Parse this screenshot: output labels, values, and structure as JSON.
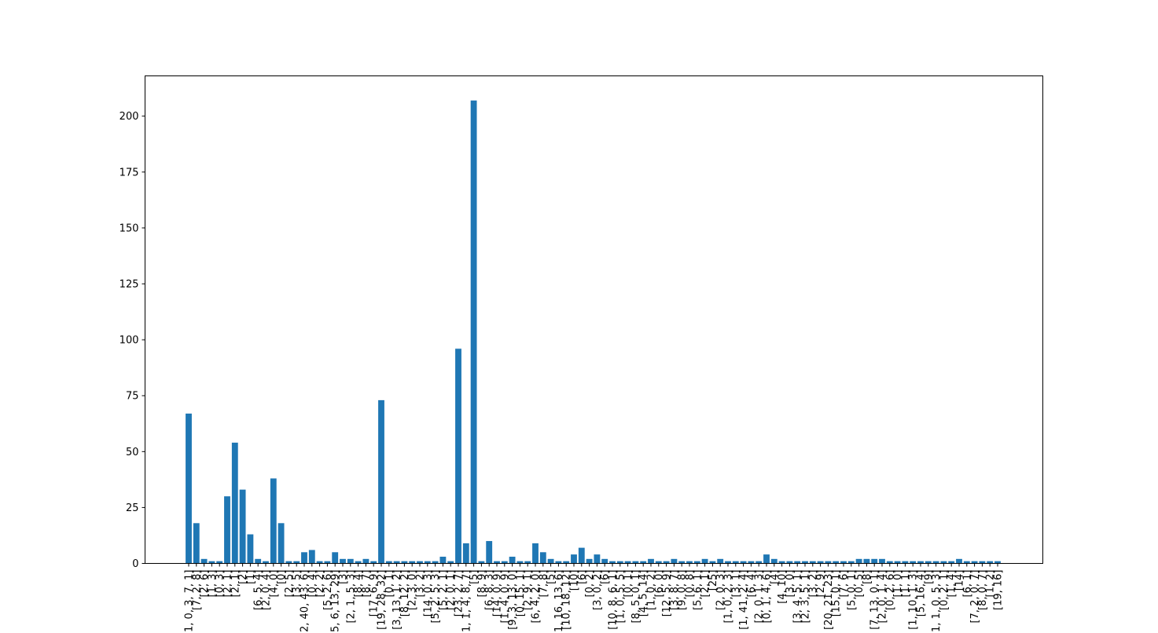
{
  "chart_data": {
    "type": "bar",
    "title": "",
    "xlabel": "",
    "ylabel": "",
    "ylim": [
      0,
      218
    ],
    "yticks": [
      0,
      25,
      50,
      75,
      100,
      125,
      150,
      175,
      200
    ],
    "bar_color": "#1f77b4",
    "grid": false,
    "legend": "none",
    "categories": [
      "[1, 0, 3, 7, 1]",
      "[7, 2, 8]",
      "[2, 6]",
      "[1, 3]",
      "[0, 3]",
      "[2, 1]",
      "[2, 1]",
      "[2]",
      "[1]",
      "[6, 5, 4]",
      "[2, 0, 4]",
      "[4, 0]",
      "[0]",
      "[2, 5]",
      "[3, 5]",
      "[2, 40, 43, 6]",
      "[0, 4]",
      "[2, 2]",
      "[5, 2, 6]",
      "[5, 6, 13, 29]",
      "[3]",
      "[2, 1, 5, 3]",
      "[8, 4]",
      "[8, 7]",
      "[17, 6, 9]",
      "[19, 28, 32]",
      "[0, 1]",
      "[3, 13, 1, 2]",
      "[8, 12, 2]",
      "[2, 3, 0]",
      "[3, 2]",
      "[14, 0, 3]",
      "[5, 2, 5, 3]",
      "[5, 2, 1]",
      "[2, 0, 1]",
      "[23, 2, 7]",
      "[1, 1, 4, 8, 7]",
      "[5]",
      "[8, 9]",
      "[6, 8, 3]",
      "[14, 0, 9]",
      "[1, 4, 0, 9]",
      "[9, 3, 13, 0]",
      "[0, 15, 1]",
      "[2, 9, 1]",
      "[6, 4, 2, 0]",
      "[7, 8]",
      "[5]",
      "[1, 16, 13, 6]",
      "[10, 18, 12]",
      "[10]",
      "[6]",
      "[0, 2]",
      "[3, 0, 2]",
      "[6]",
      "[10, 8, 6, 1]",
      "[1, 0, 5, 5]",
      "[0, 1]",
      "[8, 5, 0, 1]",
      "[4, 5, 14]",
      "[1, 0, 2]",
      "[6, 0]",
      "[12, 5, 9]",
      "[3, 8, 7]",
      "[9, 0, 8]",
      "[0, 8]",
      "[5, 6, 1]",
      "[2, 1]",
      "[25]",
      "[2, 0, 3]",
      "[1, 0, 2, 3]",
      "[3, 1]",
      "[1, 41, 2, 4]",
      "[6, 4]",
      "[2, 0, 1, 3]",
      "[0, 1, 4, 6]",
      "[4]",
      "[4, 10]",
      "[3, 0]",
      "[3, 4, 5, 1]",
      "[2, 3, 5, 1]",
      "[3, 2]",
      "[2, 9]",
      "[20, 21, 23]",
      "[15, 0, 1]",
      "[7, 6]",
      "[5, 0, 1]",
      "[0, 5]",
      "[8]",
      "[7, 13, 0, 1]",
      "[2, 0, 1, 4]",
      "[0, 2, 6]",
      "[1, 0]",
      "[1, 1]",
      "[1, 10, 1, 3]",
      "[5, 16, 4]",
      "[9]",
      "[1, 1, 0, 5, 3]",
      "[0, 2, 1]",
      "[1, 4]",
      "[14]",
      "[6, 1]",
      "[7, 2, 0, 7]",
      "[8, 0, 7]",
      "[1, 2]",
      "[19, 16]"
    ],
    "values": [
      67,
      18,
      2,
      1,
      1,
      30,
      54,
      33,
      13,
      2,
      1,
      38,
      18,
      1,
      1,
      5,
      6,
      1,
      1,
      5,
      2,
      2,
      1,
      2,
      1,
      73,
      1,
      1,
      1,
      1,
      1,
      1,
      1,
      3,
      1,
      96,
      9,
      207,
      1,
      10,
      1,
      1,
      3,
      1,
      1,
      9,
      5,
      2,
      1,
      1,
      4,
      7,
      2,
      4,
      2,
      1,
      1,
      1,
      1,
      1,
      2,
      1,
      1,
      2,
      1,
      1,
      1,
      2,
      1,
      2,
      1,
      1,
      1,
      1,
      1,
      4,
      2,
      1,
      1,
      1,
      1,
      1,
      1,
      1,
      1,
      1,
      1,
      2,
      2,
      2,
      2,
      1,
      1,
      1,
      1,
      1,
      1,
      1,
      1,
      1,
      2,
      1,
      1,
      1,
      1,
      1
    ]
  }
}
